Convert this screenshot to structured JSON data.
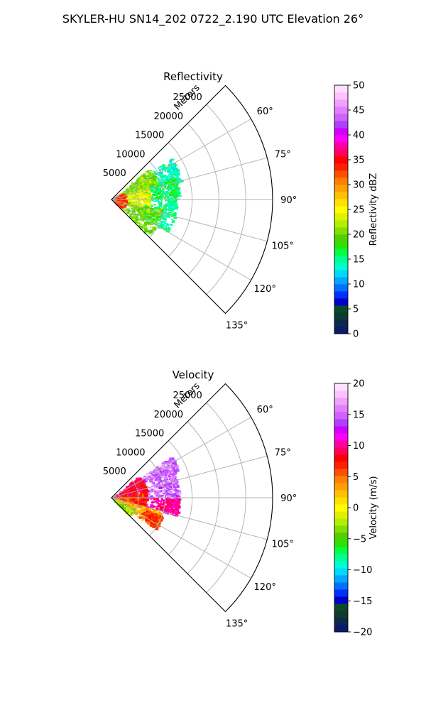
{
  "figure": {
    "title": "SKYLER-HU  SN14_202  0722_2.190 UTC Elevation 26°"
  },
  "chart_data": [
    {
      "type": "heatmap",
      "projection": "polar-sector",
      "title": "Reflectivity",
      "range_label": "Meters",
      "range_ticks": [
        5000,
        10000,
        15000,
        20000,
        25000
      ],
      "range_tick_labels": [
        "5000",
        "10000",
        "15000",
        "20000",
        "25000"
      ],
      "range_max": 30000,
      "azimuth_range_deg": [
        45,
        135
      ],
      "azimuth_ticks": [
        60,
        75,
        90,
        105,
        120,
        135
      ],
      "azimuth_tick_labels": [
        "60°",
        "75°",
        "90°",
        "105°",
        "120°",
        "135°"
      ],
      "grid": true,
      "colorbar": {
        "label": "Reflectivity dBZ",
        "min": 0,
        "max": 50,
        "ticks": [
          0,
          5,
          10,
          15,
          20,
          25,
          30,
          35,
          40,
          45,
          50
        ],
        "tick_labels": [
          "0",
          "5",
          "10",
          "15",
          "20",
          "25",
          "30",
          "35",
          "40",
          "45",
          "50"
        ],
        "colors": [
          "#0a1a6e",
          "#0b2a4a",
          "#103a30",
          "#0a4a2a",
          "#0000c8",
          "#0030ff",
          "#0070ff",
          "#00a8ff",
          "#00d8ff",
          "#00ffd0",
          "#00ff90",
          "#00ff40",
          "#30e000",
          "#50d000",
          "#80e000",
          "#b0f000",
          "#e0f000",
          "#ffff00",
          "#ffe000",
          "#ffc000",
          "#ffa000",
          "#ff8000",
          "#ff5000",
          "#ff2000",
          "#ff0000",
          "#ff0060",
          "#ff00a0",
          "#ff00ff",
          "#d000ff",
          "#b040ff",
          "#d060ff",
          "#e080ff",
          "#f0a0ff",
          "#ffc0ff",
          "#ffe0ff"
        ]
      },
      "regions": [
        {
          "az": [
            55,
            75
          ],
          "r": [
            4000,
            13500
          ],
          "v": 14
        },
        {
          "az": [
            70,
            90
          ],
          "r": [
            4500,
            12500
          ],
          "v": 16
        },
        {
          "az": [
            90,
            120
          ],
          "r": [
            4000,
            12000
          ],
          "v": 15
        },
        {
          "az": [
            50,
            70
          ],
          "r": [
            0,
            9000
          ],
          "v": 21
        },
        {
          "az": [
            70,
            110
          ],
          "r": [
            0,
            7000
          ],
          "v": 24
        },
        {
          "az": [
            100,
            135
          ],
          "r": [
            0,
            9500
          ],
          "v": 20
        },
        {
          "az": [
            60,
            130
          ],
          "r": [
            0,
            2500
          ],
          "v": 33
        }
      ]
    },
    {
      "type": "heatmap",
      "projection": "polar-sector",
      "title": "Velocity",
      "range_label": "Meters",
      "range_ticks": [
        5000,
        10000,
        15000,
        20000,
        25000
      ],
      "range_tick_labels": [
        "5000",
        "10000",
        "15000",
        "20000",
        "25000"
      ],
      "range_max": 30000,
      "azimuth_range_deg": [
        45,
        135
      ],
      "azimuth_ticks": [
        60,
        75,
        90,
        105,
        120,
        135
      ],
      "azimuth_tick_labels": [
        "60°",
        "75°",
        "90°",
        "105°",
        "120°",
        "135°"
      ],
      "grid": true,
      "colorbar": {
        "label": "Velocity (m/s)",
        "min": -20,
        "max": 20,
        "ticks": [
          -20,
          -15,
          -10,
          -5,
          0,
          5,
          10,
          15,
          20
        ],
        "tick_labels": [
          "−20",
          "−15",
          "−10",
          "−5",
          "0",
          "5",
          "10",
          "15",
          "20"
        ],
        "colors": [
          "#0a1a6e",
          "#0b2a4a",
          "#103a30",
          "#0a4a2a",
          "#0000c8",
          "#0030ff",
          "#0070ff",
          "#00a8ff",
          "#00d8ff",
          "#00ffd0",
          "#00ff90",
          "#00ff40",
          "#30e000",
          "#50d000",
          "#80e000",
          "#b0f000",
          "#e0f000",
          "#ffff00",
          "#ffe000",
          "#ffc000",
          "#ffa000",
          "#ff8000",
          "#ff5000",
          "#ff2000",
          "#ff0000",
          "#ff0060",
          "#ff00a0",
          "#ff00ff",
          "#d000ff",
          "#b040ff",
          "#d060ff",
          "#e080ff",
          "#f0a0ff",
          "#ffc0ff",
          "#ffe0ff"
        ]
      },
      "regions": [
        {
          "az": [
            55,
            68
          ],
          "r": [
            5000,
            13500
          ],
          "v": 15
        },
        {
          "az": [
            68,
            90
          ],
          "r": [
            5000,
            12500
          ],
          "v": 15
        },
        {
          "az": [
            90,
            105
          ],
          "r": [
            6000,
            12500
          ],
          "v": 10
        },
        {
          "az": [
            50,
            80
          ],
          "r": [
            0,
            6500
          ],
          "v": 9
        },
        {
          "az": [
            80,
            105
          ],
          "r": [
            0,
            6500
          ],
          "v": 7
        },
        {
          "az": [
            105,
            125
          ],
          "r": [
            0,
            9500
          ],
          "v": 3
        },
        {
          "az": [
            110,
            125
          ],
          "r": [
            6000,
            10000
          ],
          "v": 6
        },
        {
          "az": [
            118,
            135
          ],
          "r": [
            0,
            4500
          ],
          "v": -3
        }
      ]
    }
  ]
}
